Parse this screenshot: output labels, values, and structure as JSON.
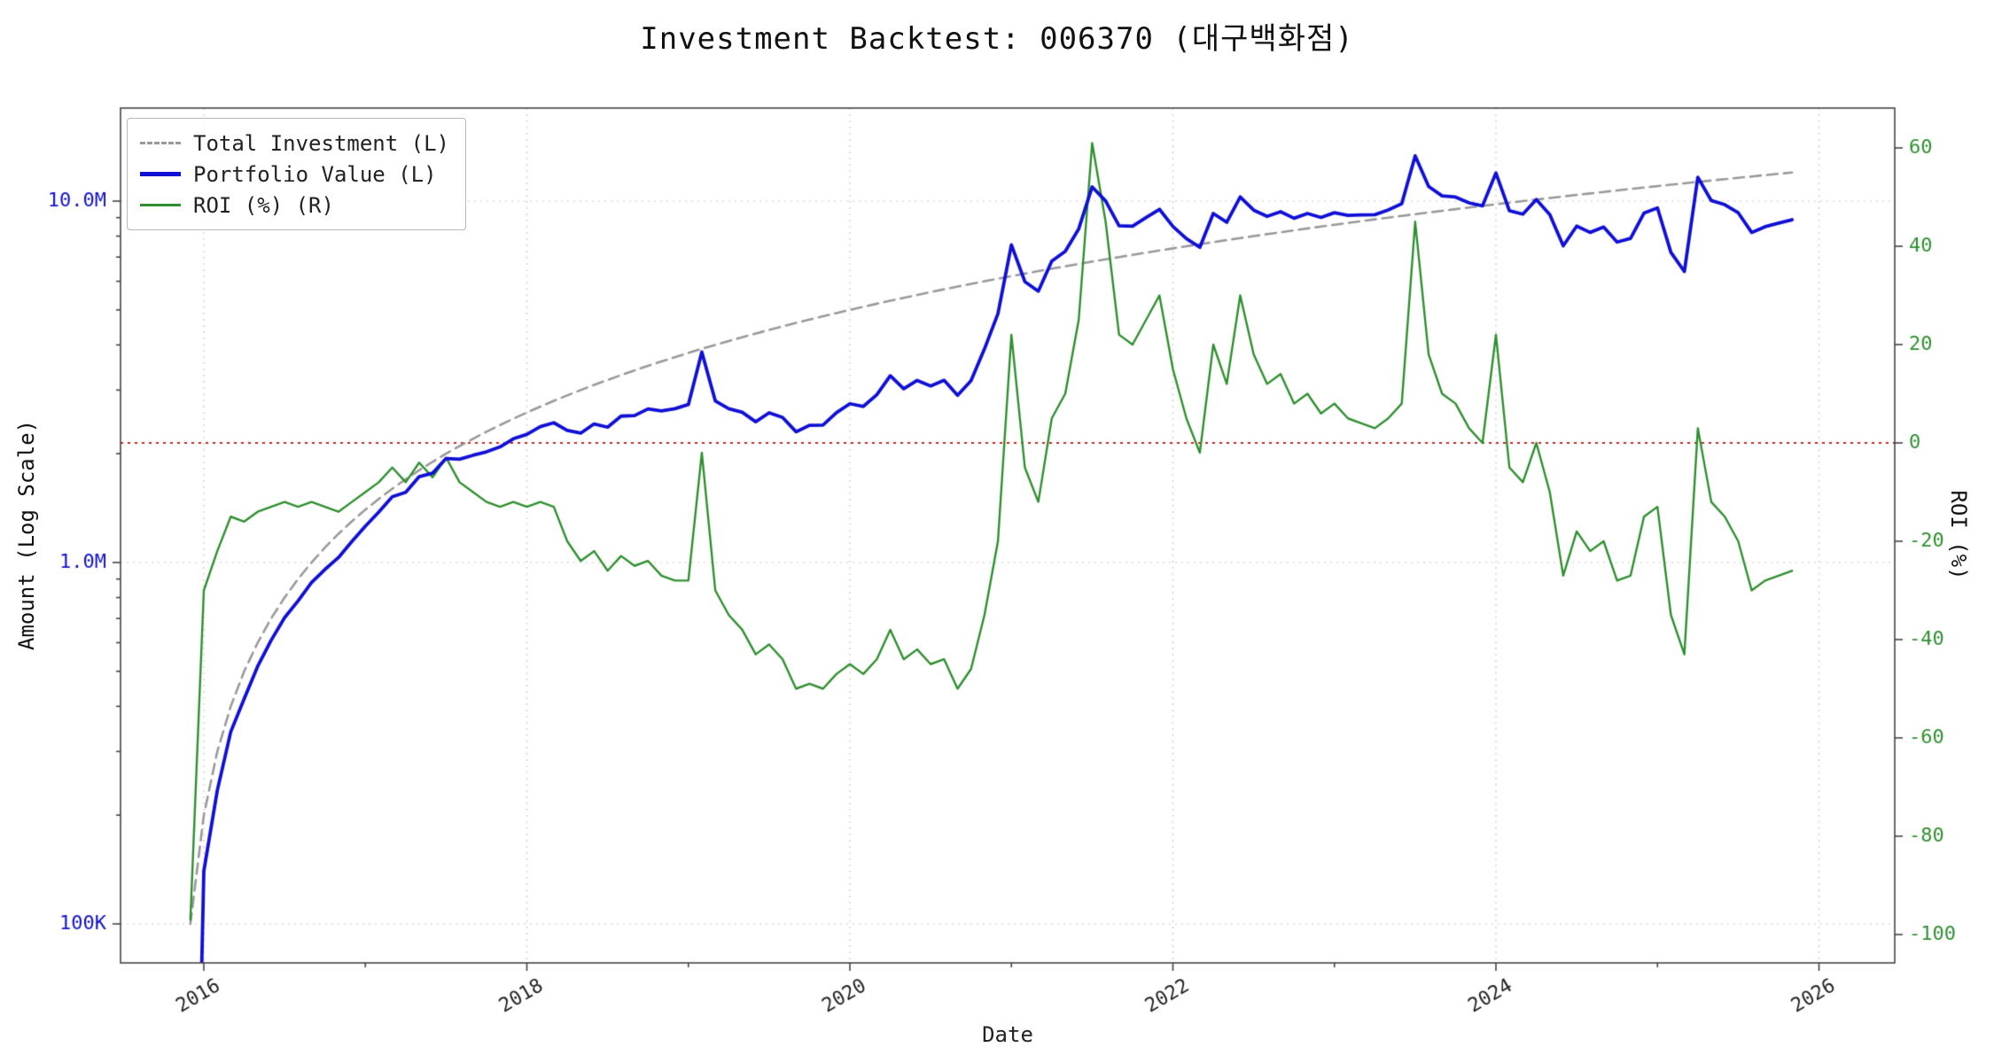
{
  "title": "Investment Backtest: 006370 (대구백화점)",
  "axes": {
    "xlabel": "Date",
    "ylabel_left": "Amount (Log Scale)",
    "ylabel_right": "ROI (%)"
  },
  "legend": {
    "items": [
      {
        "label": "Total Investment (L)",
        "color": "#999999",
        "style": "dashed"
      },
      {
        "label": "Portfolio Value (L)",
        "color": "#0f0fd6",
        "style": "solid-thick"
      },
      {
        "label": "ROI (%) (R)",
        "color": "#2f8f2f",
        "style": "solid"
      }
    ]
  },
  "colors": {
    "portfolio": "#0f0fd6",
    "total_investment": "#999999",
    "roi": "#2f8f2f",
    "zero_line": "#cc2222",
    "grid": "#c9c9c9",
    "spine": "#444444",
    "left_tick_text": "#1212cc",
    "right_tick_text": "#2f8f2f",
    "x_tick_text": "#222222"
  },
  "chart_data": {
    "type": "line",
    "title": "Investment Backtest: 006370 (대구백화점)",
    "x_start": "2015-12",
    "x_end": "2025-11",
    "x_freq": "monthly",
    "n_points": 120,
    "x_tick_years": [
      2016,
      2018,
      2020,
      2022,
      2024,
      2026
    ],
    "x_minor_tick_years": [
      2017,
      2019,
      2021,
      2023,
      2025
    ],
    "left_axis": {
      "label": "Amount (Log Scale)",
      "scale": "log",
      "unit": "KRW (values in thousands)",
      "approx_range_k": [
        78,
        18000
      ],
      "ticks": [
        {
          "value_k": 10000,
          "label": "10.0M"
        },
        {
          "value_k": 1000,
          "label": "1.0M"
        },
        {
          "value_k": 100,
          "label": "100K"
        }
      ]
    },
    "right_axis": {
      "label": "ROI (%)",
      "scale": "linear",
      "approx_range": [
        -107,
        68
      ],
      "ticks": [
        {
          "value": 60,
          "label": "60"
        },
        {
          "value": 40,
          "label": "40"
        },
        {
          "value": 20,
          "label": "20"
        },
        {
          "value": 0,
          "label": "0"
        },
        {
          "value": -20,
          "label": "-20"
        },
        {
          "value": -40,
          "label": "-40"
        },
        {
          "value": -60,
          "label": "-60"
        },
        {
          "value": -80,
          "label": "-80"
        },
        {
          "value": -100,
          "label": "-100"
        }
      ]
    },
    "zero_roi_line": {
      "axis": "right",
      "value": 0,
      "color": "#cc2222",
      "style": "dotted"
    },
    "grid": {
      "vertical_at_tick_years": true,
      "horizontal_at_left_decades_k": [
        100,
        1000,
        10000
      ],
      "style": "dotted"
    },
    "legend_position": "upper-left",
    "series": [
      {
        "name": "Total Investment (L)",
        "axis": "left",
        "style": "dashed",
        "color": "#999999",
        "start_k": 100,
        "step_k": 100,
        "description_of_visible_pattern": "cumulative contributions rising 100K per month from 100K to 12.0M"
      },
      {
        "name": "Portfolio Value (L)",
        "axis": "left",
        "style": "solid",
        "color": "#0f0fd6",
        "values_k": [
          3,
          140,
          234,
          340,
          420,
          516,
          609,
          704,
          783,
          880,
          957,
          1032,
          1144,
          1260,
          1380,
          1520,
          1564,
          1728,
          1767,
          1940,
          1932,
          1980,
          2024,
          2088,
          2200,
          2262,
          2376,
          2436,
          2320,
          2280,
          2418,
          2368,
          2541,
          2550,
          2660,
          2628,
          2664,
          2736,
          3822,
          2800,
          2665,
          2604,
          2451,
          2596,
          2520,
          2300,
          2397,
          2400,
          2597,
          2750,
          2703,
          2912,
          3286,
          3024,
          3190,
          3080,
          3192,
          2900,
          3186,
          3900,
          4880,
          7564,
          5985,
          5632,
          6825,
          7260,
          8375,
          10948,
          10005,
          8540,
          8520,
          9000,
          9490,
          8510,
          7875,
          7448,
          9240,
          8736,
          10270,
          9440,
          9072,
          9348,
          8964,
          9240,
          9010,
          9288,
          9135,
          9152,
          9167,
          9450,
          9828,
          13340,
          10974,
          10340,
          10260,
          9888,
          9700,
          11956,
          9405,
          9200,
          10100,
          9180,
          7519,
          8528,
          8190,
          8480,
          7704,
          7884,
          9265,
          9570,
          7215,
          6384,
          11639,
          10032,
          9775,
          9280,
          8190,
          8496,
          8687,
          8880
        ]
      },
      {
        "name": "ROI (%) (R)",
        "axis": "right",
        "style": "solid",
        "color": "#2f8f2f",
        "values_pct": [
          -97,
          -30,
          -22,
          -15,
          -16,
          -14,
          -13,
          -12,
          -13,
          -12,
          -13,
          -14,
          -12,
          -10,
          -8,
          -5,
          -8,
          -4,
          -7,
          -3,
          -8,
          -10,
          -12,
          -13,
          -12,
          -13,
          -12,
          -13,
          -20,
          -24,
          -22,
          -26,
          -23,
          -25,
          -24,
          -27,
          -28,
          -28,
          -2,
          -30,
          -35,
          -38,
          -43,
          -41,
          -44,
          -50,
          -49,
          -50,
          -47,
          -45,
          -47,
          -44,
          -38,
          -44,
          -42,
          -45,
          -44,
          -50,
          -46,
          -35,
          -20,
          22,
          -5,
          -12,
          5,
          10,
          25,
          61,
          45,
          22,
          20,
          25,
          30,
          15,
          5,
          -2,
          20,
          12,
          30,
          18,
          12,
          14,
          8,
          10,
          6,
          8,
          5,
          4,
          3,
          5,
          8,
          45,
          18,
          10,
          8,
          3,
          0,
          22,
          -5,
          -8,
          0,
          -10,
          -27,
          -18,
          -22,
          -20,
          -28,
          -27,
          -15,
          -13,
          -35,
          -43,
          3,
          -12,
          -15,
          -20,
          -30,
          -28,
          -27,
          -26
        ]
      }
    ]
  }
}
